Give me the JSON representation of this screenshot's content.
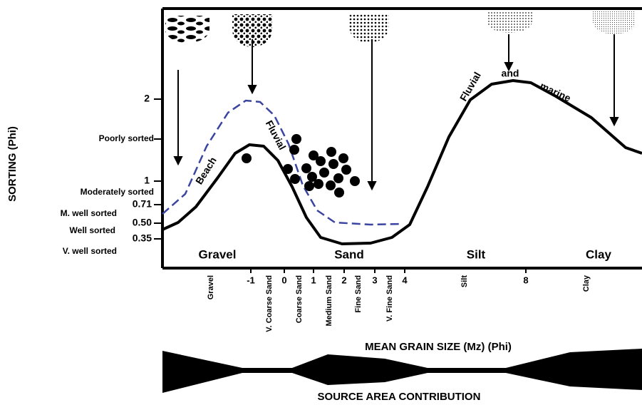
{
  "y_axis": {
    "title": "SORTING (Phi)",
    "labels": [
      "2",
      "Poorly sorted",
      "1",
      "Moderately sorted",
      "0.71",
      "M. well sorted",
      "0.50",
      "Well sorted",
      "0.35",
      "V. well sorted"
    ]
  },
  "x_axis": {
    "title": "MEAN GRAIN SIZE (Mz) (Phi)",
    "labels": [
      "Gravel",
      "-1",
      "V. Coarse Sand",
      "0",
      "Coarse Sand",
      "1",
      "Medium Sand",
      "2",
      "Fine Sand",
      "3",
      "V. Fine Sand",
      "4",
      "Silt",
      "8",
      "Clay"
    ]
  },
  "zones": [
    "Gravel",
    "Sand",
    "Silt",
    "Clay"
  ],
  "curve_labels": [
    "Beach",
    "Fluvial",
    "Fluvial",
    "and",
    "marine"
  ],
  "footer": "SOURCE AREA CONTRIBUTION"
}
